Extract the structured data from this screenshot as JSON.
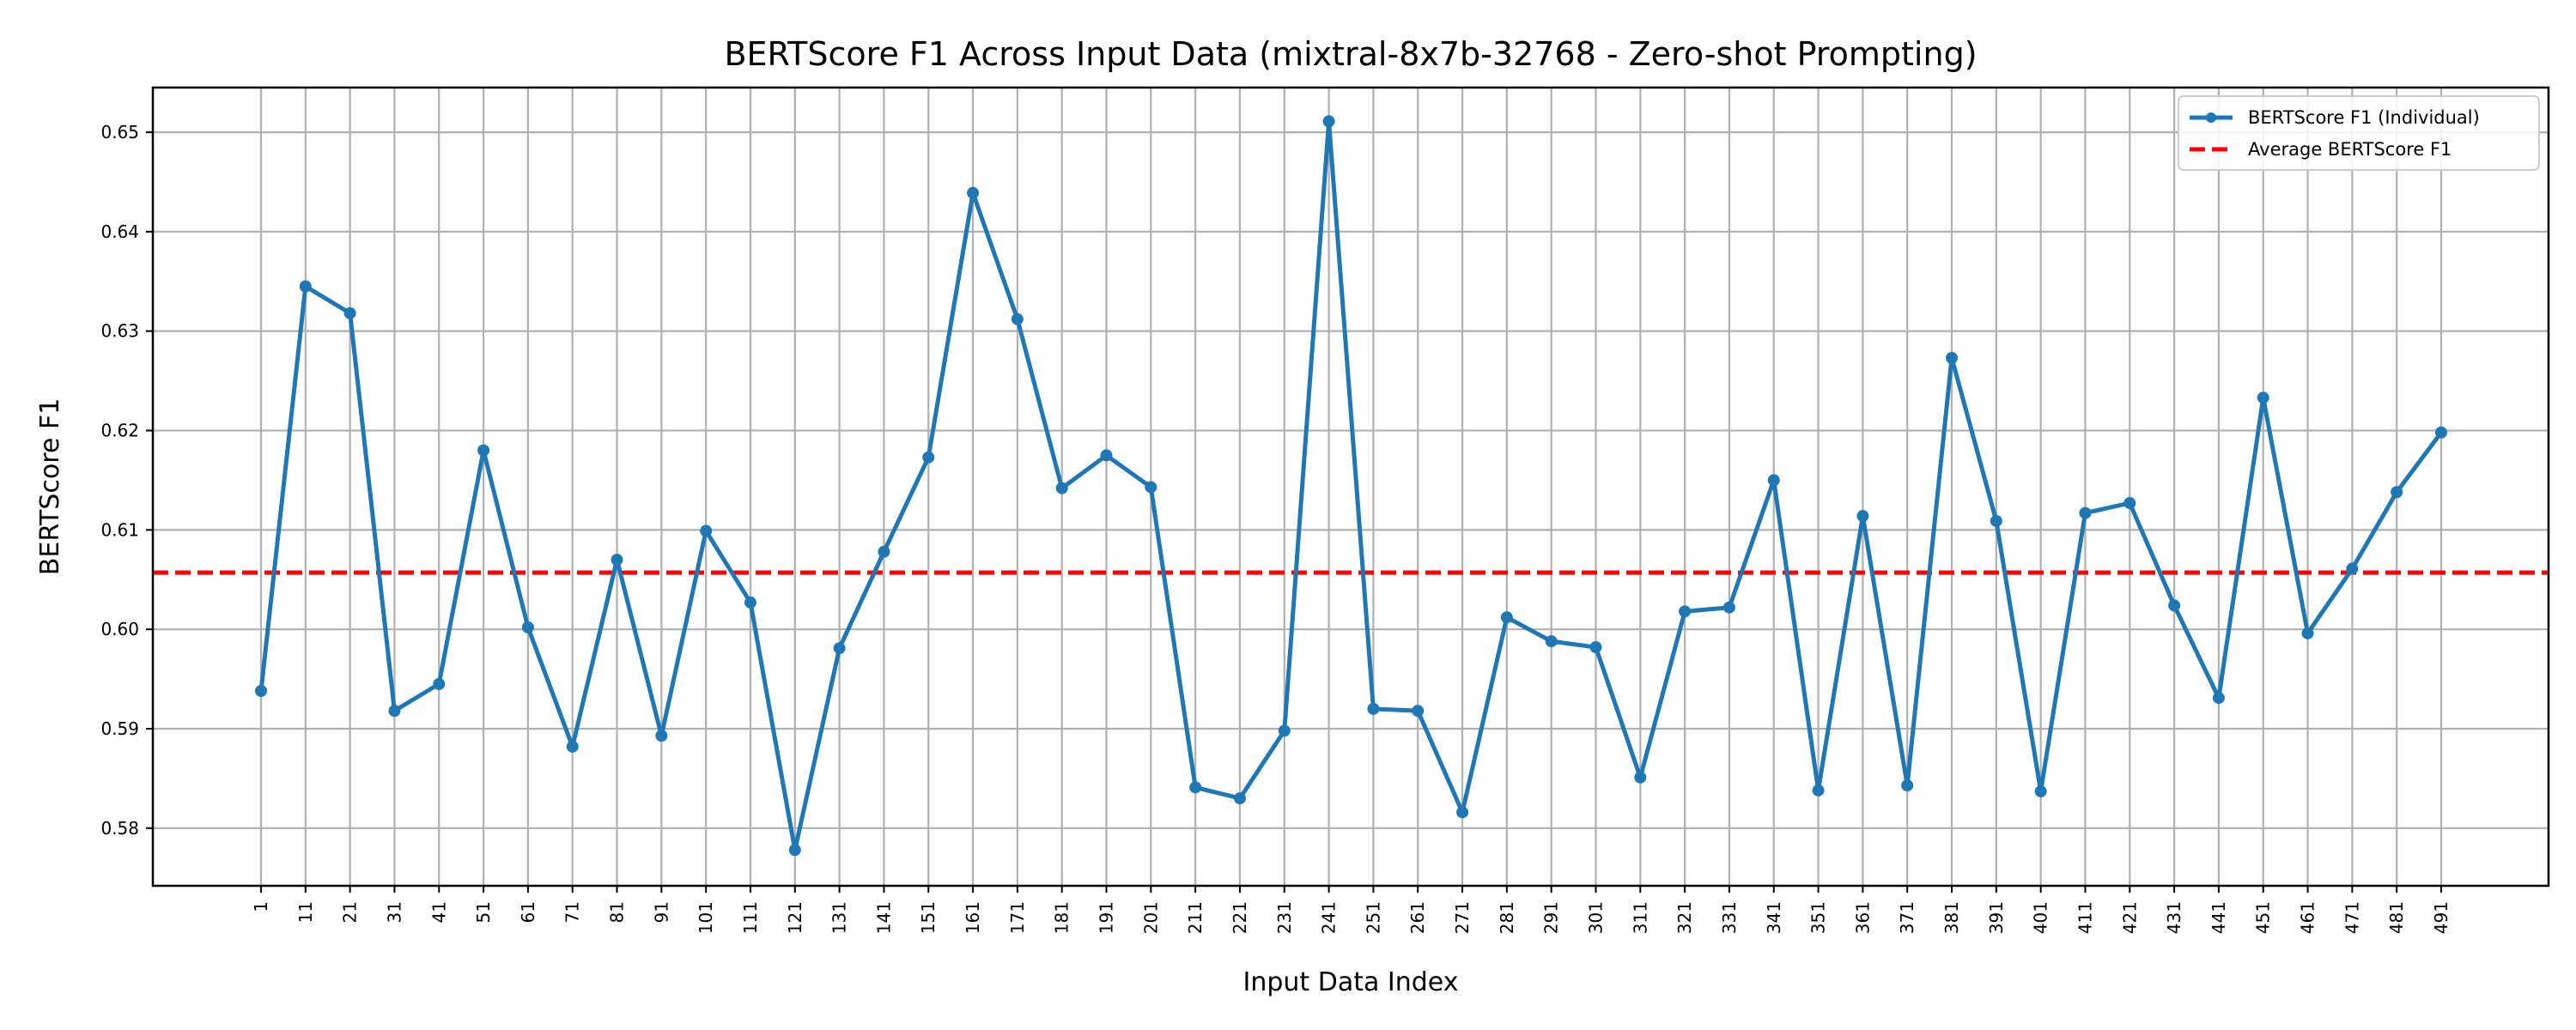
{
  "chart_data": {
    "type": "line",
    "title": "BERTScore F1 Across Input Data (mixtral-8x7b-32768 - Zero-shot Prompting)",
    "xlabel": "Input Data Index",
    "ylabel": "BERTScore F1",
    "ylim": [
      0.5742,
      0.6545
    ],
    "yticks": [
      0.58,
      0.59,
      0.6,
      0.61,
      0.62,
      0.63,
      0.64,
      0.65
    ],
    "ytick_labels": [
      "0.58",
      "0.59",
      "0.60",
      "0.61",
      "0.62",
      "0.63",
      "0.64",
      "0.65"
    ],
    "grid": true,
    "legend_position": "top-right",
    "x": [
      1,
      11,
      21,
      31,
      41,
      51,
      61,
      71,
      81,
      91,
      101,
      111,
      121,
      131,
      141,
      151,
      161,
      171,
      181,
      191,
      201,
      211,
      221,
      231,
      241,
      251,
      261,
      271,
      281,
      291,
      301,
      311,
      321,
      331,
      341,
      351,
      361,
      371,
      381,
      391,
      401,
      411,
      421,
      431,
      441,
      451,
      461,
      471,
      481,
      491
    ],
    "x_labels": [
      "1",
      "11",
      "21",
      "31",
      "41",
      "51",
      "61",
      "71",
      "81",
      "91",
      "101",
      "111",
      "121",
      "131",
      "141",
      "151",
      "161",
      "171",
      "181",
      "191",
      "201",
      "211",
      "221",
      "231",
      "241",
      "251",
      "261",
      "271",
      "281",
      "291",
      "301",
      "311",
      "321",
      "331",
      "341",
      "351",
      "361",
      "371",
      "381",
      "391",
      "401",
      "411",
      "421",
      "431",
      "441",
      "451",
      "461",
      "471",
      "481",
      "491"
    ],
    "series": [
      {
        "name": "BERTScore F1 (Individual)",
        "color": "#1f77b4",
        "values": [
          0.5938,
          0.6345,
          0.6318,
          0.5918,
          0.5945,
          0.618,
          0.6002,
          0.5882,
          0.607,
          0.5893,
          0.6099,
          0.6027,
          0.5778,
          0.5981,
          0.6078,
          0.6173,
          0.6439,
          0.6312,
          0.6142,
          0.6175,
          0.6143,
          0.5841,
          0.583,
          0.5898,
          0.6511,
          0.592,
          0.5918,
          0.5816,
          0.6012,
          0.5988,
          0.5982,
          0.5851,
          0.6018,
          0.6022,
          0.615,
          0.5838,
          0.6114,
          0.5843,
          0.6273,
          0.6109,
          0.5837,
          0.6117,
          0.6127,
          0.6024,
          0.5931,
          0.6233,
          0.5996,
          0.6061,
          0.6138,
          0.6198
        ]
      }
    ],
    "average": {
      "name": "Average BERTScore F1",
      "value": 0.6057,
      "color": "#ff0000"
    }
  }
}
